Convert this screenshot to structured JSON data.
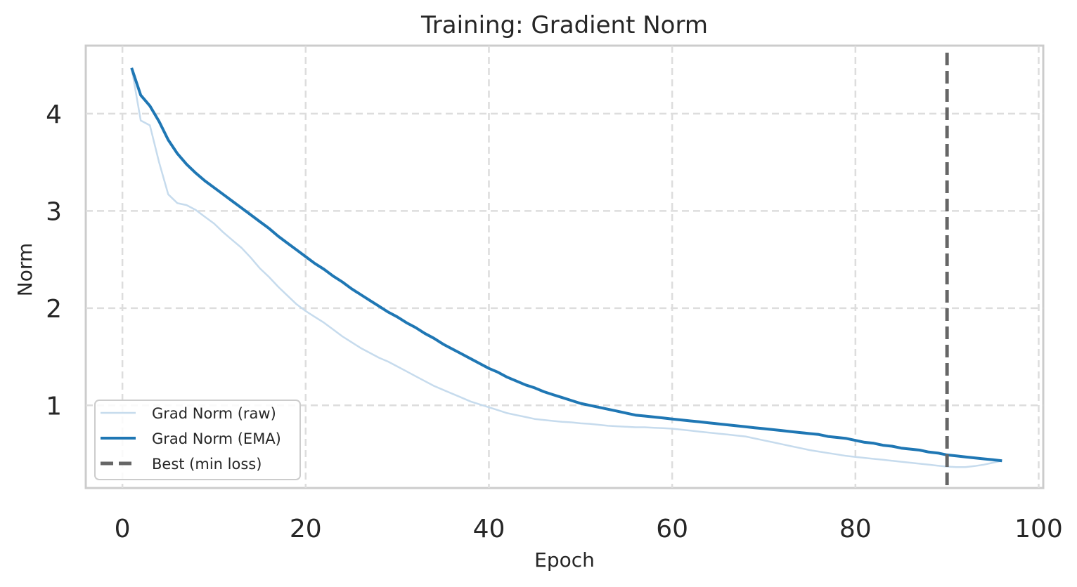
{
  "chart_data": {
    "type": "line",
    "title": "Training: Gradient Norm",
    "xlabel": "Epoch",
    "ylabel": "Norm",
    "xlim": [
      -4,
      100.5
    ],
    "ylim": [
      0.15,
      4.7
    ],
    "x_ticks": [
      0,
      20,
      40,
      60,
      80,
      100
    ],
    "y_ticks": [
      1,
      2,
      3,
      4
    ],
    "grid": true,
    "legend_position": "lower-left",
    "colors": {
      "raw": "#c6dbed",
      "ema": "#1f77b4",
      "best": "#666666",
      "grid": "#dddddd",
      "frame": "#cccccc"
    },
    "x": [
      1,
      2,
      3,
      4,
      5,
      6,
      7,
      8,
      9,
      10,
      11,
      12,
      13,
      14,
      15,
      16,
      17,
      18,
      19,
      20,
      21,
      22,
      23,
      24,
      25,
      26,
      27,
      28,
      29,
      30,
      31,
      32,
      33,
      34,
      35,
      36,
      37,
      38,
      39,
      40,
      41,
      42,
      43,
      44,
      45,
      46,
      47,
      48,
      49,
      50,
      51,
      52,
      53,
      54,
      55,
      56,
      57,
      58,
      59,
      60,
      61,
      62,
      63,
      64,
      65,
      66,
      67,
      68,
      69,
      70,
      71,
      72,
      73,
      74,
      75,
      76,
      77,
      78,
      79,
      80,
      81,
      82,
      83,
      84,
      85,
      86,
      87,
      88,
      89,
      90,
      91,
      92,
      93,
      94,
      95,
      96
    ],
    "series": [
      {
        "name": "Grad Norm (raw)",
        "values": [
          4.47,
          3.93,
          3.88,
          3.5,
          3.17,
          3.08,
          3.06,
          3.01,
          2.94,
          2.87,
          2.78,
          2.7,
          2.62,
          2.52,
          2.41,
          2.32,
          2.22,
          2.13,
          2.04,
          1.97,
          1.91,
          1.85,
          1.78,
          1.71,
          1.65,
          1.59,
          1.54,
          1.49,
          1.45,
          1.4,
          1.35,
          1.3,
          1.25,
          1.2,
          1.16,
          1.12,
          1.08,
          1.04,
          1.01,
          0.98,
          0.95,
          0.92,
          0.9,
          0.88,
          0.86,
          0.85,
          0.84,
          0.83,
          0.825,
          0.815,
          0.81,
          0.8,
          0.79,
          0.785,
          0.78,
          0.775,
          0.775,
          0.77,
          0.765,
          0.76,
          0.75,
          0.74,
          0.73,
          0.72,
          0.71,
          0.7,
          0.69,
          0.68,
          0.66,
          0.64,
          0.62,
          0.6,
          0.58,
          0.56,
          0.54,
          0.525,
          0.51,
          0.495,
          0.48,
          0.47,
          0.46,
          0.45,
          0.44,
          0.43,
          0.42,
          0.41,
          0.4,
          0.39,
          0.38,
          0.37,
          0.365,
          0.365,
          0.375,
          0.39,
          0.41,
          0.43
        ]
      },
      {
        "name": "Grad Norm (EMA)",
        "values": [
          4.47,
          4.19,
          4.08,
          3.92,
          3.73,
          3.59,
          3.48,
          3.39,
          3.31,
          3.24,
          3.17,
          3.1,
          3.03,
          2.96,
          2.89,
          2.82,
          2.74,
          2.67,
          2.6,
          2.53,
          2.46,
          2.4,
          2.33,
          2.27,
          2.2,
          2.14,
          2.08,
          2.02,
          1.96,
          1.91,
          1.85,
          1.8,
          1.74,
          1.69,
          1.63,
          1.58,
          1.53,
          1.48,
          1.43,
          1.38,
          1.34,
          1.29,
          1.25,
          1.21,
          1.18,
          1.14,
          1.11,
          1.08,
          1.05,
          1.02,
          1.0,
          0.98,
          0.96,
          0.94,
          0.92,
          0.9,
          0.89,
          0.88,
          0.87,
          0.86,
          0.85,
          0.84,
          0.83,
          0.82,
          0.81,
          0.8,
          0.79,
          0.78,
          0.77,
          0.76,
          0.75,
          0.74,
          0.73,
          0.72,
          0.71,
          0.7,
          0.68,
          0.67,
          0.66,
          0.64,
          0.62,
          0.61,
          0.59,
          0.58,
          0.56,
          0.55,
          0.54,
          0.52,
          0.51,
          0.49,
          0.48,
          0.47,
          0.46,
          0.45,
          0.44,
          0.43
        ]
      }
    ],
    "vline": {
      "name": "Best (min loss)",
      "x": 90,
      "style": "dashed"
    }
  }
}
